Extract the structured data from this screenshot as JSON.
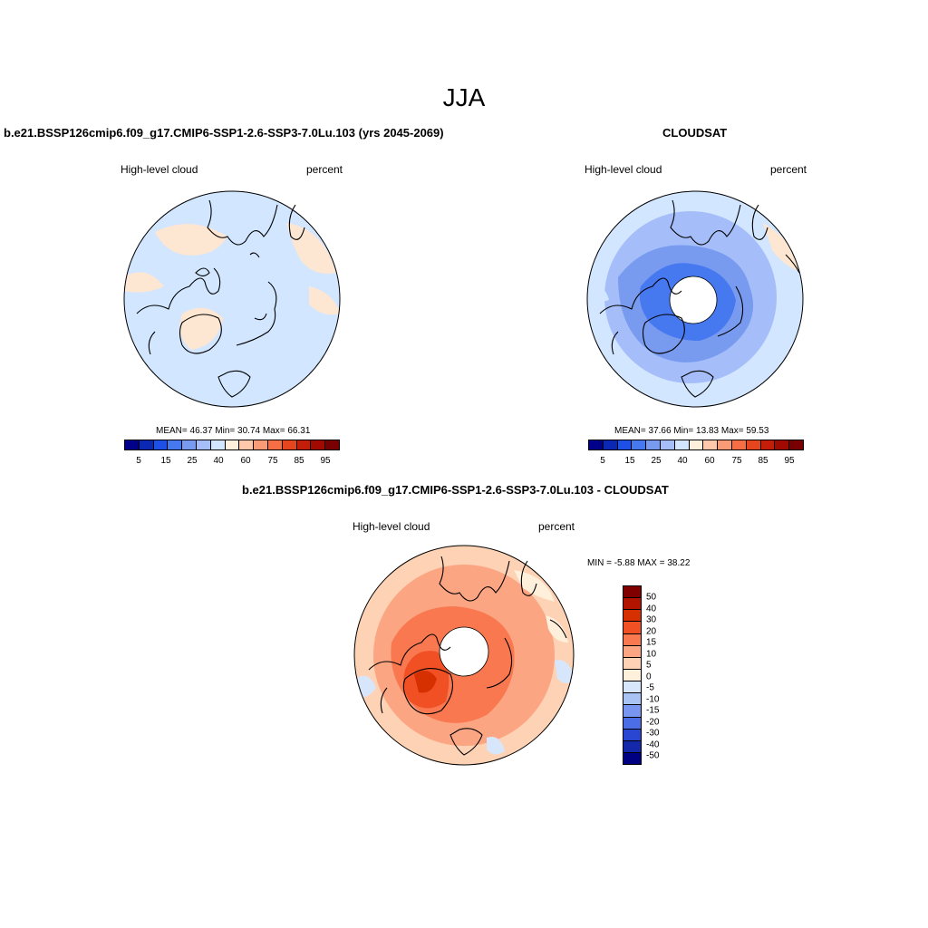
{
  "figure": {
    "title": "JJA"
  },
  "panels": {
    "model": {
      "title": "b.e21.BSSP126cmip6.f09_g17.CMIP6-SSP1-2.6-SSP3-7.0Lu.103 (yrs 2045-2069)",
      "left_label": "High-level cloud",
      "right_label": "percent",
      "stats": "MEAN=  46.37  Min=  30.74  Max=  66.31",
      "colorbar_labels": [
        "5",
        "15",
        "25",
        "40",
        "60",
        "75",
        "85",
        "95"
      ]
    },
    "obs": {
      "title": "CLOUDSAT",
      "left_label": "High-level cloud",
      "right_label": "percent",
      "stats": "MEAN=  37.66  Min=  13.83  Max=  59.53",
      "colorbar_labels": [
        "5",
        "15",
        "25",
        "40",
        "60",
        "75",
        "85",
        "95"
      ]
    },
    "diff": {
      "title": "b.e21.BSSP126cmip6.f09_g17.CMIP6-SSP1-2.6-SSP3-7.0Lu.103 - CLOUDSAT",
      "left_label": "High-level cloud",
      "right_label": "percent",
      "stats": "MIN =  -5.88 MAX =  38.22",
      "colorbar_labels": [
        "50",
        "40",
        "30",
        "20",
        "15",
        "10",
        "5",
        "0",
        "-5",
        "-10",
        "-15",
        "-20",
        "-30",
        "-40",
        "-50"
      ]
    }
  },
  "colors": {
    "seq": [
      "#00008b",
      "#0a28b4",
      "#1e50e6",
      "#4678f0",
      "#789bf0",
      "#a5befa",
      "#d2e6ff",
      "#fff0dc",
      "#ffc8aa",
      "#fa9b78",
      "#f56e46",
      "#e6461e",
      "#c31e0a",
      "#a00a00",
      "#780000"
    ],
    "diff": [
      "#800000",
      "#b31400",
      "#d73000",
      "#f05023",
      "#fa7850",
      "#fca582",
      "#fed2b4",
      "#fff0dc",
      "#d7e6fa",
      "#aac3f5",
      "#7896f0",
      "#4b6ee6",
      "#2846d2",
      "#1428aa",
      "#000082"
    ],
    "pale_blue": "#d2e6ff",
    "pale_orange": "#fde6d2"
  },
  "chart_data": [
    {
      "type": "heatmap",
      "title": "b.e21.BSSP126cmip6.f09_g17.CMIP6-SSP1-2.6-SSP3-7.0Lu.103 (yrs 2045-2069)",
      "variable": "High-level cloud",
      "units": "percent",
      "projection": "north polar stereographic",
      "mean": 46.37,
      "min": 30.74,
      "max": 66.31,
      "contour_levels": [
        5,
        10,
        15,
        20,
        25,
        30,
        40,
        50,
        60,
        70,
        75,
        80,
        85,
        90,
        95
      ]
    },
    {
      "type": "heatmap",
      "title": "CLOUDSAT",
      "variable": "High-level cloud",
      "units": "percent",
      "projection": "north polar stereographic",
      "mean": 37.66,
      "min": 13.83,
      "max": 59.53,
      "contour_levels": [
        5,
        10,
        15,
        20,
        25,
        30,
        40,
        50,
        60,
        70,
        75,
        80,
        85,
        90,
        95
      ]
    },
    {
      "type": "heatmap",
      "title": "b.e21.BSSP126cmip6.f09_g17.CMIP6-SSP1-2.6-SSP3-7.0Lu.103 - CLOUDSAT",
      "variable": "High-level cloud",
      "units": "percent",
      "projection": "north polar stereographic",
      "min": -5.88,
      "max": 38.22,
      "contour_levels": [
        -50,
        -40,
        -30,
        -20,
        -15,
        -10,
        -5,
        0,
        5,
        10,
        15,
        20,
        30,
        40,
        50
      ]
    }
  ]
}
